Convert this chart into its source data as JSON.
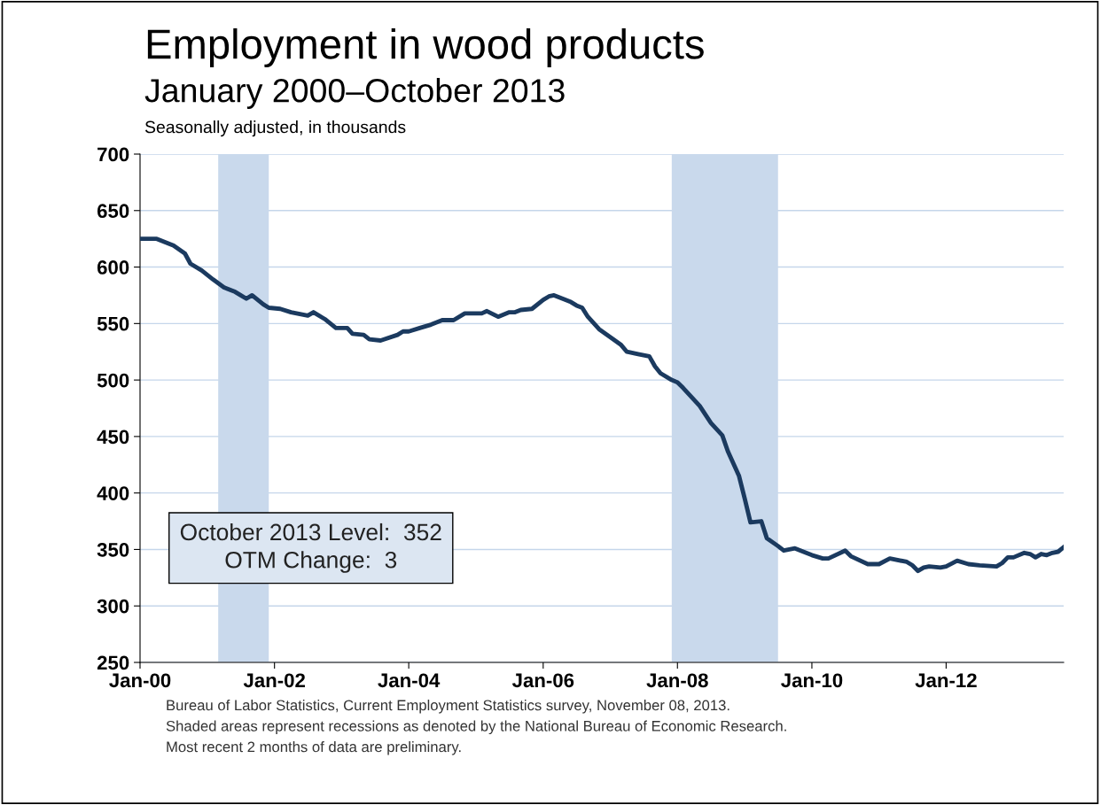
{
  "chart_data": {
    "type": "line",
    "title": "Employment in wood products",
    "subtitle": "January 2000–October 2013",
    "ylabel": "Seasonally adjusted, in thousands",
    "x": [
      "2000-01",
      "2000-04",
      "2000-07",
      "2000-09",
      "2000-10",
      "2000-12",
      "2001-02",
      "2001-04",
      "2001-06",
      "2001-07",
      "2001-08",
      "2001-09",
      "2001-11",
      "2001-12",
      "2002-02",
      "2002-04",
      "2002-07",
      "2002-08",
      "2002-10",
      "2002-12",
      "2003-02",
      "2003-03",
      "2003-05",
      "2003-06",
      "2003-08",
      "2003-11",
      "2003-12",
      "2004-01",
      "2004-03",
      "2004-05",
      "2004-07",
      "2004-09",
      "2004-11",
      "2005-02",
      "2005-03",
      "2005-05",
      "2005-07",
      "2005-08",
      "2005-09",
      "2005-11",
      "2006-01",
      "2006-02",
      "2006-03",
      "2006-04",
      "2006-06",
      "2006-07",
      "2006-08",
      "2006-09",
      "2006-11",
      "2007-01",
      "2007-03",
      "2007-04",
      "2007-06",
      "2007-08",
      "2007-09",
      "2007-10",
      "2007-12",
      "2008-01",
      "2008-02",
      "2008-05",
      "2008-07",
      "2008-09",
      "2008-10",
      "2008-12",
      "2009-01",
      "2009-02",
      "2009-04",
      "2009-05",
      "2009-07",
      "2009-08",
      "2009-10",
      "2009-12",
      "2010-01",
      "2010-03",
      "2010-04",
      "2010-07",
      "2010-08",
      "2010-11",
      "2011-01",
      "2011-03",
      "2011-06",
      "2011-07",
      "2011-08",
      "2011-09",
      "2011-10",
      "2011-12",
      "2012-01",
      "2012-03",
      "2012-05",
      "2012-07",
      "2012-10",
      "2012-11",
      "2012-12",
      "2013-01",
      "2013-03",
      "2013-04",
      "2013-05",
      "2013-06",
      "2013-07",
      "2013-08",
      "2013-09",
      "2013-10"
    ],
    "series": [
      {
        "color": "#1b3a5f",
        "values": [
          625,
          625,
          619,
          612,
          603,
          597,
          589,
          582,
          578,
          575,
          572,
          575,
          567,
          564,
          563,
          560,
          557,
          560,
          554,
          546,
          546,
          541,
          540,
          536,
          535,
          540,
          543,
          543,
          546,
          549,
          553,
          553,
          559,
          559,
          561,
          556,
          560,
          560,
          562,
          563,
          571,
          574,
          575,
          573,
          569,
          566,
          564,
          556,
          545,
          538,
          531,
          525,
          523,
          521,
          512,
          506,
          500,
          498,
          493,
          477,
          462,
          451,
          437,
          415,
          395,
          374,
          375,
          360,
          353,
          349,
          351,
          347,
          345,
          342,
          342,
          349,
          344,
          337,
          337,
          342,
          339,
          336,
          331,
          334,
          335,
          334,
          335,
          340,
          337,
          336,
          335,
          338,
          343,
          343,
          347,
          346,
          343,
          346,
          345,
          347,
          348,
          352
        ]
      }
    ],
    "xlim": [
      "2000-01",
      "2013-10"
    ],
    "xticks": [
      {
        "value": "2000-01",
        "label": "Jan-00"
      },
      {
        "value": "2002-01",
        "label": "Jan-02"
      },
      {
        "value": "2004-01",
        "label": "Jan-04"
      },
      {
        "value": "2006-01",
        "label": "Jan-06"
      },
      {
        "value": "2008-01",
        "label": "Jan-08"
      },
      {
        "value": "2010-01",
        "label": "Jan-10"
      },
      {
        "value": "2012-01",
        "label": "Jan-12"
      }
    ],
    "ylim": [
      250,
      700
    ],
    "yticks": [
      250,
      300,
      350,
      400,
      450,
      500,
      550,
      600,
      650,
      700
    ],
    "grid": "y",
    "legend": false,
    "marker": "none",
    "line_style": "solid",
    "bands": [
      {
        "axis": "x",
        "from": "2001-03",
        "to": "2001-12",
        "color": "#c9d9ec"
      },
      {
        "axis": "x",
        "from": "2007-12",
        "to": "2009-07",
        "color": "#c9d9ec"
      }
    ],
    "annotations": [
      "October 2013 Level:  352\nOTM Change:  3",
      "Bureau of Labor Statistics, Current Employment Statistics survey, November 08, 2013.",
      "Shaded areas represent recessions as denoted by the National Bureau of Economic Research.",
      "Most recent 2 months of data are preliminary."
    ]
  }
}
